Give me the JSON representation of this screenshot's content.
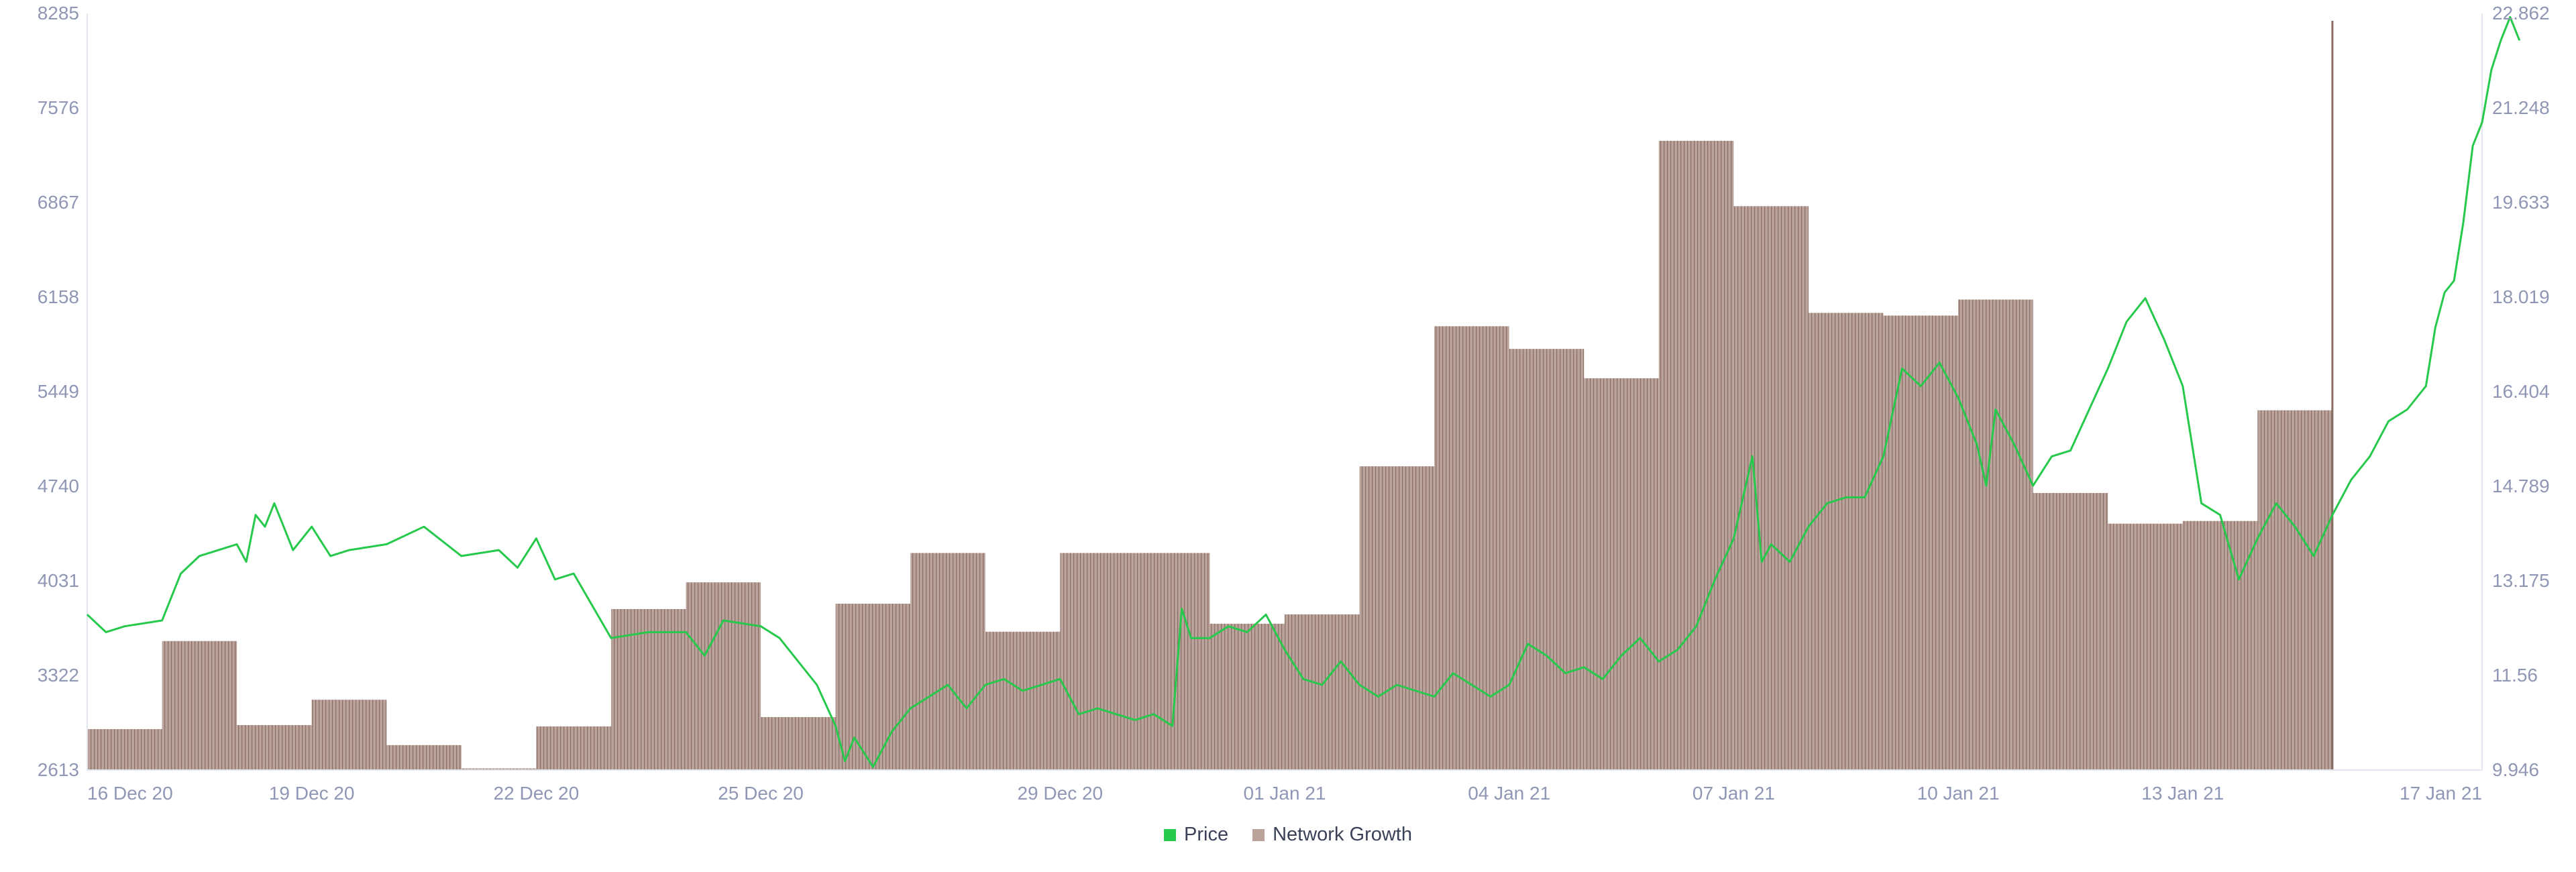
{
  "chart_data": {
    "type": "line",
    "title": "",
    "xlabel": "",
    "ylabel": "",
    "x_range": [
      "2020-12-16",
      "2021-01-17"
    ],
    "x_ticks": [
      {
        "date": "2020-12-16",
        "label": "16 Dec 20"
      },
      {
        "date": "2020-12-19",
        "label": "19 Dec 20"
      },
      {
        "date": "2020-12-22",
        "label": "22 Dec 20"
      },
      {
        "date": "2020-12-25",
        "label": "25 Dec 20"
      },
      {
        "date": "2020-12-29",
        "label": "29 Dec 20"
      },
      {
        "date": "2021-01-01",
        "label": "01 Jan 21"
      },
      {
        "date": "2021-01-04",
        "label": "04 Jan 21"
      },
      {
        "date": "2021-01-07",
        "label": "07 Jan 21"
      },
      {
        "date": "2021-01-10",
        "label": "10 Jan 21"
      },
      {
        "date": "2021-01-13",
        "label": "13 Jan 21"
      },
      {
        "date": "2021-01-17",
        "label": "17 Jan 21"
      }
    ],
    "left_axis": {
      "min": 2613,
      "max": 8285,
      "ticks": [
        "8285",
        "7576",
        "6867",
        "6158",
        "5449",
        "4740",
        "4031",
        "3322",
        "2613"
      ]
    },
    "right_axis": {
      "min": 9.946,
      "max": 22.862,
      "ticks": [
        "22.862",
        "21.248",
        "19.633",
        "18.019",
        "16.404",
        "14.789",
        "13.175",
        "11.56",
        "9.946"
      ]
    },
    "grid": false,
    "legend_position": "bottom-center",
    "series": [
      {
        "name": "Price",
        "axis": "right",
        "color": "#26c94b",
        "style": "line",
        "points": [
          [
            "2020-12-16 00:00",
            12.6
          ],
          [
            "2020-12-16 06:00",
            12.3
          ],
          [
            "2020-12-16 12:00",
            12.4
          ],
          [
            "2020-12-17 00:00",
            12.5
          ],
          [
            "2020-12-17 06:00",
            13.3
          ],
          [
            "2020-12-17 12:00",
            13.6
          ],
          [
            "2020-12-18 00:00",
            13.8
          ],
          [
            "2020-12-18 03:00",
            13.5
          ],
          [
            "2020-12-18 06:00",
            14.3
          ],
          [
            "2020-12-18 09:00",
            14.1
          ],
          [
            "2020-12-18 12:00",
            14.5
          ],
          [
            "2020-12-18 18:00",
            13.7
          ],
          [
            "2020-12-19 00:00",
            14.1
          ],
          [
            "2020-12-19 06:00",
            13.6
          ],
          [
            "2020-12-19 12:00",
            13.7
          ],
          [
            "2020-12-20 00:00",
            13.8
          ],
          [
            "2020-12-20 12:00",
            14.1
          ],
          [
            "2020-12-21 00:00",
            13.6
          ],
          [
            "2020-12-21 12:00",
            13.7
          ],
          [
            "2020-12-21 18:00",
            13.4
          ],
          [
            "2020-12-22 00:00",
            13.9
          ],
          [
            "2020-12-22 06:00",
            13.2
          ],
          [
            "2020-12-22 12:00",
            13.3
          ],
          [
            "2020-12-23 00:00",
            12.2
          ],
          [
            "2020-12-23 12:00",
            12.3
          ],
          [
            "2020-12-24 00:00",
            12.3
          ],
          [
            "2020-12-24 06:00",
            11.9
          ],
          [
            "2020-12-24 12:00",
            12.5
          ],
          [
            "2020-12-25 00:00",
            12.4
          ],
          [
            "2020-12-25 06:00",
            12.2
          ],
          [
            "2020-12-25 18:00",
            11.4
          ],
          [
            "2020-12-26 00:00",
            10.7
          ],
          [
            "2020-12-26 03:00",
            10.1
          ],
          [
            "2020-12-26 06:00",
            10.5
          ],
          [
            "2020-12-26 12:00",
            10.0
          ],
          [
            "2020-12-26 18:00",
            10.6
          ],
          [
            "2020-12-27 00:00",
            11.0
          ],
          [
            "2020-12-27 06:00",
            11.2
          ],
          [
            "2020-12-27 12:00",
            11.4
          ],
          [
            "2020-12-27 18:00",
            11.0
          ],
          [
            "2020-12-28 00:00",
            11.4
          ],
          [
            "2020-12-28 06:00",
            11.5
          ],
          [
            "2020-12-28 12:00",
            11.3
          ],
          [
            "2020-12-29 00:00",
            11.5
          ],
          [
            "2020-12-29 06:00",
            10.9
          ],
          [
            "2020-12-29 12:00",
            11.0
          ],
          [
            "2020-12-30 00:00",
            10.8
          ],
          [
            "2020-12-30 06:00",
            10.9
          ],
          [
            "2020-12-30 12:00",
            10.7
          ],
          [
            "2020-12-30 15:00",
            12.7
          ],
          [
            "2020-12-30 18:00",
            12.2
          ],
          [
            "2020-12-31 00:00",
            12.2
          ],
          [
            "2020-12-31 06:00",
            12.4
          ],
          [
            "2020-12-31 12:00",
            12.3
          ],
          [
            "2020-12-31 18:00",
            12.6
          ],
          [
            "2021-01-01 00:00",
            12.0
          ],
          [
            "2021-01-01 06:00",
            11.5
          ],
          [
            "2021-01-01 12:00",
            11.4
          ],
          [
            "2021-01-01 18:00",
            11.8
          ],
          [
            "2021-01-02 00:00",
            11.4
          ],
          [
            "2021-01-02 06:00",
            11.2
          ],
          [
            "2021-01-02 12:00",
            11.4
          ],
          [
            "2021-01-03 00:00",
            11.2
          ],
          [
            "2021-01-03 06:00",
            11.6
          ],
          [
            "2021-01-03 12:00",
            11.4
          ],
          [
            "2021-01-03 18:00",
            11.2
          ],
          [
            "2021-01-04 00:00",
            11.4
          ],
          [
            "2021-01-04 06:00",
            12.1
          ],
          [
            "2021-01-04 12:00",
            11.9
          ],
          [
            "2021-01-04 18:00",
            11.6
          ],
          [
            "2021-01-05 00:00",
            11.7
          ],
          [
            "2021-01-05 06:00",
            11.5
          ],
          [
            "2021-01-05 12:00",
            11.9
          ],
          [
            "2021-01-05 18:00",
            12.2
          ],
          [
            "2021-01-06 00:00",
            11.8
          ],
          [
            "2021-01-06 06:00",
            12.0
          ],
          [
            "2021-01-06 12:00",
            12.4
          ],
          [
            "2021-01-06 18:00",
            13.2
          ],
          [
            "2021-01-07 00:00",
            13.9
          ],
          [
            "2021-01-07 06:00",
            15.3
          ],
          [
            "2021-01-07 09:00",
            13.5
          ],
          [
            "2021-01-07 12:00",
            13.8
          ],
          [
            "2021-01-07 18:00",
            13.5
          ],
          [
            "2021-01-08 00:00",
            14.1
          ],
          [
            "2021-01-08 06:00",
            14.5
          ],
          [
            "2021-01-08 12:00",
            14.6
          ],
          [
            "2021-01-08 18:00",
            14.6
          ],
          [
            "2021-01-09 00:00",
            15.3
          ],
          [
            "2021-01-09 06:00",
            16.8
          ],
          [
            "2021-01-09 12:00",
            16.5
          ],
          [
            "2021-01-09 18:00",
            16.9
          ],
          [
            "2021-01-10 00:00",
            16.3
          ],
          [
            "2021-01-10 06:00",
            15.5
          ],
          [
            "2021-01-10 09:00",
            14.8
          ],
          [
            "2021-01-10 12:00",
            16.1
          ],
          [
            "2021-01-10 18:00",
            15.5
          ],
          [
            "2021-01-11 00:00",
            14.8
          ],
          [
            "2021-01-11 06:00",
            15.3
          ],
          [
            "2021-01-11 12:00",
            15.4
          ],
          [
            "2021-01-11 18:00",
            16.1
          ],
          [
            "2021-01-12 00:00",
            16.8
          ],
          [
            "2021-01-12 06:00",
            17.6
          ],
          [
            "2021-01-12 12:00",
            18.0
          ],
          [
            "2021-01-12 18:00",
            17.3
          ],
          [
            "2021-01-13 00:00",
            16.5
          ],
          [
            "2021-01-13 06:00",
            14.5
          ],
          [
            "2021-01-13 12:00",
            14.3
          ],
          [
            "2021-01-13 18:00",
            13.2
          ],
          [
            "2021-01-14 00:00",
            13.9
          ],
          [
            "2021-01-14 06:00",
            14.5
          ],
          [
            "2021-01-14 12:00",
            14.1
          ],
          [
            "2021-01-14 18:00",
            13.6
          ],
          [
            "2021-01-15 00:00",
            14.3
          ],
          [
            "2021-01-15 06:00",
            14.9
          ],
          [
            "2021-01-15 12:00",
            15.3
          ],
          [
            "2021-01-15 18:00",
            15.9
          ],
          [
            "2021-01-16 00:00",
            16.1
          ],
          [
            "2021-01-16 06:00",
            16.5
          ],
          [
            "2021-01-16 09:00",
            17.5
          ],
          [
            "2021-01-16 12:00",
            18.1
          ],
          [
            "2021-01-16 15:00",
            18.3
          ],
          [
            "2021-01-16 18:00",
            19.3
          ],
          [
            "2021-01-16 21:00",
            20.6
          ],
          [
            "2021-01-17 00:00",
            21.0
          ],
          [
            "2021-01-17 03:00",
            21.9
          ],
          [
            "2021-01-17 06:00",
            22.4
          ],
          [
            "2021-01-17 09:00",
            22.8
          ],
          [
            "2021-01-17 12:00",
            22.4
          ]
        ]
      },
      {
        "name": "Network Growth",
        "axis": "left",
        "color": "#b9a39a",
        "stroke": "#8a6e66",
        "style": "step-bar",
        "points": [
          [
            "2020-12-16",
            2920
          ],
          [
            "2020-12-17",
            3580
          ],
          [
            "2020-12-18",
            2950
          ],
          [
            "2020-12-19",
            3140
          ],
          [
            "2020-12-20",
            2800
          ],
          [
            "2020-12-21",
            2625
          ],
          [
            "2020-12-22",
            2940
          ],
          [
            "2020-12-23",
            3820
          ],
          [
            "2020-12-24",
            4020
          ],
          [
            "2020-12-25",
            3010
          ],
          [
            "2020-12-26",
            3860
          ],
          [
            "2020-12-27",
            4240
          ],
          [
            "2020-12-28",
            3650
          ],
          [
            "2020-12-29",
            4240
          ],
          [
            "2020-12-30",
            4240
          ],
          [
            "2020-12-31",
            3710
          ],
          [
            "2021-01-01",
            3780
          ],
          [
            "2021-01-02",
            4890
          ],
          [
            "2021-01-03",
            5940
          ],
          [
            "2021-01-04",
            5770
          ],
          [
            "2021-01-05",
            5550
          ],
          [
            "2021-01-06",
            7330
          ],
          [
            "2021-01-07",
            6840
          ],
          [
            "2021-01-08",
            6040
          ],
          [
            "2021-01-09",
            6020
          ],
          [
            "2021-01-10",
            6140
          ],
          [
            "2021-01-11",
            4690
          ],
          [
            "2021-01-12",
            4460
          ],
          [
            "2021-01-13",
            4480
          ],
          [
            "2021-01-14",
            5310
          ],
          [
            "2021-01-15",
            8230
          ]
        ]
      }
    ]
  }
}
